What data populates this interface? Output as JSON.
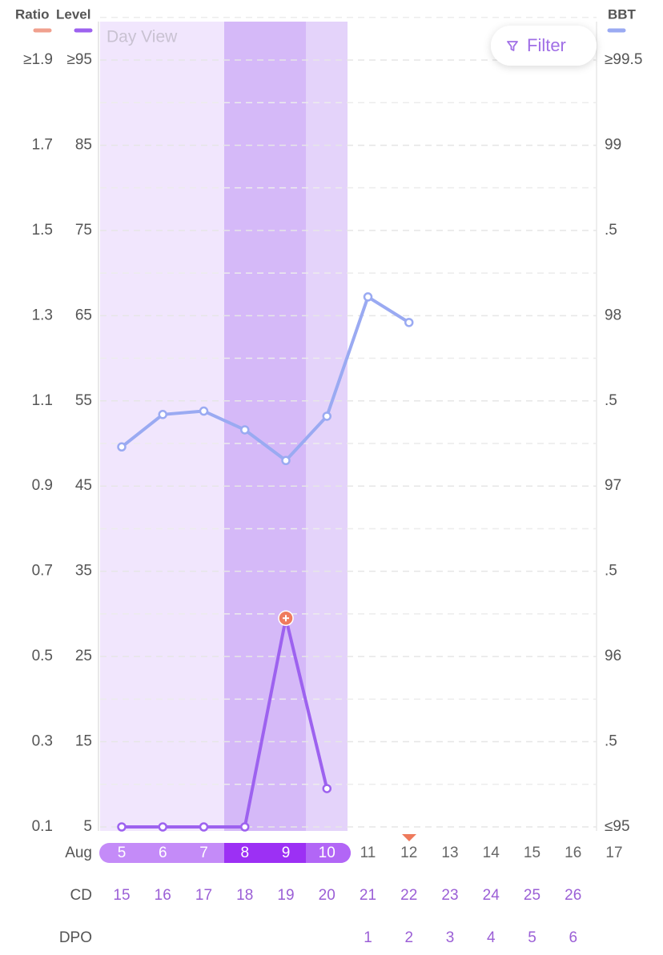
{
  "chart_data": {
    "type": "line",
    "view_label": "Day View",
    "filter_label": "Filter",
    "ratio_axis": {
      "name": "Ratio",
      "color": "#f0a08e",
      "lim": [
        0.1,
        1.9
      ],
      "ticks": [
        0.1,
        0.3,
        0.5,
        0.7,
        0.9,
        1.1,
        1.3,
        1.5,
        1.7,
        {
          "value": 1.9,
          "label": "≥1.9"
        }
      ]
    },
    "ylim": [
      5,
      95
    ],
    "yticks": [
      5,
      15,
      25,
      35,
      45,
      55,
      65,
      75,
      85,
      {
        "value": 95,
        "label": "≥95"
      }
    ],
    "y2lim": [
      95,
      99.5
    ],
    "y2ticks": [
      {
        "value": 95,
        "label": "≤95"
      },
      {
        "value": 95.5,
        "label": ".5"
      },
      96,
      {
        "value": 96.5,
        "label": ".5"
      },
      97,
      {
        "value": 97.5,
        "label": ".5"
      },
      98,
      {
        "value": 98.5,
        "label": ".5"
      },
      99,
      {
        "value": 99.5,
        "label": "≥99.5"
      }
    ],
    "grid": true,
    "categories_label": "Aug",
    "categories": [
      "5",
      "6",
      "7",
      "8",
      "9",
      "10",
      "11",
      "12",
      "13",
      "14",
      "15",
      "16",
      "17"
    ],
    "cd_label": "CD",
    "cd": [
      15,
      16,
      17,
      18,
      19,
      20,
      21,
      22,
      23,
      24,
      25,
      26,
      null
    ],
    "dpo_label": "DPO",
    "dpo": [
      null,
      null,
      null,
      null,
      null,
      null,
      1,
      2,
      3,
      4,
      5,
      6,
      null
    ],
    "series": [
      {
        "name": "Level",
        "color": "#9d62ef",
        "axis": "y",
        "values": [
          5,
          5,
          5,
          5,
          29.5,
          9.5,
          null,
          null,
          null,
          null,
          null,
          null,
          null
        ]
      },
      {
        "name": "BBT",
        "color": "#9aaaf2",
        "axis": "y2",
        "values": [
          97.23,
          97.42,
          97.44,
          97.33,
          97.15,
          97.41,
          98.11,
          97.96,
          null,
          null,
          null,
          null,
          null
        ]
      }
    ]
  }
}
